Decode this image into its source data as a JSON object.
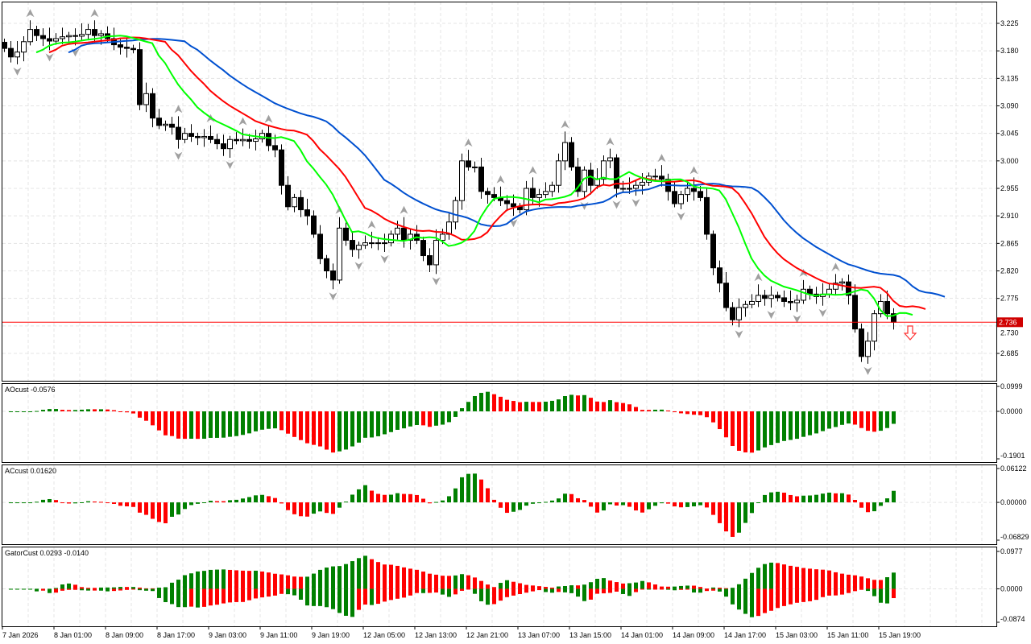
{
  "chart_data": {
    "type": "candlestick",
    "timeframe_bar_hours": 1,
    "price_axis": {
      "ticks": [
        "3.225",
        "3.180",
        "3.135",
        "3.090",
        "3.045",
        "3.000",
        "2.955",
        "2.910",
        "2.865",
        "2.820",
        "2.775",
        "2.730",
        "2.685"
      ],
      "ylim": [
        2.668,
        3.241
      ]
    },
    "current_price": {
      "label": "2.736",
      "value": 2.736,
      "color": "#ff0000"
    },
    "time_axis": {
      "ticks": [
        "7 Jan 2026",
        "8 Jan 01:00",
        "8 Jan 09:00",
        "8 Jan 17:00",
        "9 Jan 03:00",
        "9 Jan 11:00",
        "9 Jan 19:00",
        "12 Jan 05:00",
        "12 Jan 13:00",
        "12 Jan 21:00",
        "13 Jan 07:00",
        "13 Jan 15:00",
        "14 Jan 01:00",
        "14 Jan 09:00",
        "14 Jan 17:00",
        "15 Jan 03:00",
        "15 Jan 11:00",
        "15 Jan 19:00"
      ]
    },
    "closes": [
      3.184,
      3.17,
      3.178,
      3.195,
      3.215,
      3.205,
      3.2,
      3.196,
      3.2,
      3.203,
      3.205,
      3.204,
      3.207,
      3.215,
      3.205,
      3.208,
      3.2,
      3.19,
      3.186,
      3.184,
      3.182,
      3.092,
      3.11,
      3.07,
      3.058,
      3.06,
      3.055,
      3.035,
      3.045,
      3.04,
      3.038,
      3.04,
      3.035,
      3.028,
      3.02,
      3.035,
      3.033,
      3.035,
      3.032,
      3.036,
      3.045,
      3.025,
      3.018,
      2.96,
      2.925,
      2.94,
      2.92,
      2.91,
      2.88,
      2.84,
      2.82,
      2.805,
      2.89,
      2.87,
      2.855,
      2.862,
      2.866,
      2.866,
      2.866,
      2.866,
      2.88,
      2.89,
      2.87,
      2.88,
      2.87,
      2.845,
      2.83,
      2.87,
      2.88,
      2.9,
      2.935,
      3.0,
      2.99,
      2.99,
      2.95,
      2.945,
      2.94,
      2.935,
      2.93,
      2.925,
      2.92,
      2.955,
      2.94,
      2.945,
      2.95,
      2.96,
      3.0,
      3.03,
      2.99,
      2.95,
      2.985,
      2.96,
      2.97,
      3.0,
      3.005,
      2.955,
      2.955,
      2.955,
      2.96,
      2.965,
      2.975,
      2.975,
      2.97,
      2.95,
      2.93,
      2.945,
      2.955,
      2.95,
      2.94,
      2.88,
      2.825,
      2.8,
      2.76,
      2.74,
      2.76,
      2.765,
      2.77,
      2.78,
      2.775,
      2.78,
      2.776,
      2.77,
      2.768,
      2.772,
      2.79,
      2.782,
      2.778,
      2.782,
      2.79,
      2.8,
      2.802,
      2.78,
      2.725,
      2.68,
      2.705,
      2.75,
      2.77,
      2.75,
      2.736
    ],
    "overlays": {
      "alligator": {
        "jaw_color": "#0050d0",
        "teeth_color": "#ff0000",
        "lips_color": "#00ff00"
      },
      "fractal_color": "#a0a0a0",
      "sell_signal": {
        "icon": "down-arrow-outline",
        "color": "#ff3030"
      }
    },
    "subcharts": [
      {
        "title": "AOcust -0.0576",
        "type": "histogram",
        "ticks": [
          "0.0999",
          "0.0000",
          "-0.1901"
        ],
        "ylim": [
          -0.1901,
          0.0999
        ],
        "up_color": "#008000",
        "down_color": "#ff0000"
      },
      {
        "title": "ACcust 0.01620",
        "type": "histogram",
        "ticks": [
          "0.06122",
          "0.00000",
          "-0.06829"
        ],
        "ylim": [
          -0.06829,
          0.06122
        ],
        "up_color": "#008000",
        "down_color": "#ff0000"
      },
      {
        "title": "GatorCust 0.0293 -0.0140",
        "type": "histogram",
        "ticks": [
          "0.0977",
          "0.0000",
          "-0.0874"
        ],
        "ylim": [
          -0.0874,
          0.0977
        ],
        "up_color": "#008000",
        "down_color": "#ff0000"
      }
    ],
    "grid": true
  }
}
